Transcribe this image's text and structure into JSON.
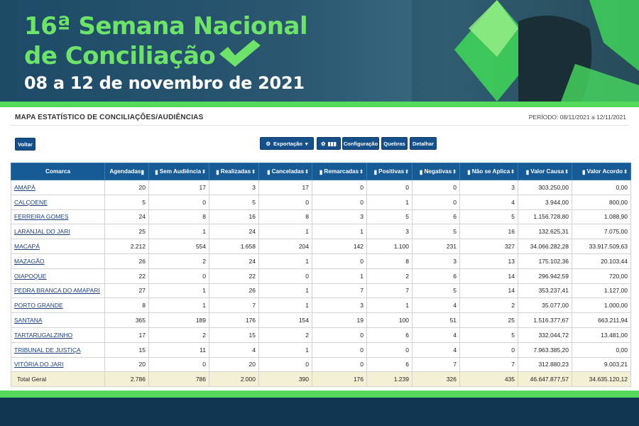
{
  "banner": {
    "title_line1": "16ª Semana Nacional",
    "title_line2": "de Conciliação",
    "date": "08 a 12 de novembro de 2021"
  },
  "report": {
    "title": "MAPA ESTATÍSTICO DE CONCILIAÇÕES/AUDIÊNCIAS",
    "period": "PERÍODO: 08/11/2021 a 12/11/2021"
  },
  "toolbar": {
    "voltar": "Voltar",
    "exportacao": "Exportação",
    "configuracao": "Configuração",
    "quebras": "Quebras",
    "detalhar": "Detalhar"
  },
  "colors": {
    "header_bg": "#165a96",
    "accent_green": "#56d85c",
    "total_row_bg": "#f4f0d6"
  },
  "table": {
    "headers": [
      "Comarca",
      "Agendadas",
      "Sem Audiência",
      "Realizadas",
      "Canceladas",
      "Remarcadas",
      "Positivas",
      "Negativas",
      "Não se Aplica",
      "Valor Causa",
      "Valor Acordo"
    ],
    "rows": [
      [
        "AMAPÁ",
        "20",
        "17",
        "3",
        "17",
        "0",
        "0",
        "0",
        "3",
        "303.250,00",
        "0,00"
      ],
      [
        "CALÇOENE",
        "5",
        "0",
        "5",
        "0",
        "0",
        "1",
        "0",
        "4",
        "3.944,00",
        "800,00"
      ],
      [
        "FERREIRA GOMES",
        "24",
        "8",
        "16",
        "8",
        "3",
        "5",
        "6",
        "5",
        "1.156.728,80",
        "1.088,90"
      ],
      [
        "LARANJAL DO JARI",
        "25",
        "1",
        "24",
        "1",
        "1",
        "3",
        "5",
        "16",
        "132.625,31",
        "7.075,00"
      ],
      [
        "MACAPÁ",
        "2.212",
        "554",
        "1.658",
        "204",
        "142",
        "1.100",
        "231",
        "327",
        "34.066.282,28",
        "33.917.509,63"
      ],
      [
        "MAZAGÃO",
        "26",
        "2",
        "24",
        "1",
        "0",
        "8",
        "3",
        "13",
        "175.102,36",
        "20.103,44"
      ],
      [
        "OIAPOQUE",
        "22",
        "0",
        "22",
        "0",
        "1",
        "2",
        "6",
        "14",
        "296.942,59",
        "720,00"
      ],
      [
        "PEDRA BRANCA DO AMAPARI",
        "27",
        "1",
        "26",
        "1",
        "7",
        "7",
        "5",
        "14",
        "353.237,41",
        "1.127,00"
      ],
      [
        "PORTO GRANDE",
        "8",
        "1",
        "7",
        "1",
        "3",
        "1",
        "4",
        "2",
        "35.077,00",
        "1.000,00"
      ],
      [
        "SANTANA",
        "365",
        "189",
        "176",
        "154",
        "19",
        "100",
        "51",
        "25",
        "1.516.377,67",
        "663.211,94"
      ],
      [
        "TARTARUGALZINHO",
        "17",
        "2",
        "15",
        "2",
        "0",
        "6",
        "4",
        "5",
        "332.044,72",
        "13.481,00"
      ],
      [
        "TRIBUNAL DE JUSTIÇA",
        "15",
        "11",
        "4",
        "1",
        "0",
        "0",
        "4",
        "0",
        "7.963.385,20",
        "0,00"
      ],
      [
        "VITÓRIA DO JARI",
        "20",
        "0",
        "20",
        "0",
        "0",
        "6",
        "7",
        "7",
        "312.880,23",
        "9.003,21"
      ]
    ],
    "total": [
      "Total Geral",
      "2.786",
      "786",
      "2.000",
      "390",
      "176",
      "1.239",
      "326",
      "435",
      "46.647.877,57",
      "34.635.120,12"
    ]
  }
}
